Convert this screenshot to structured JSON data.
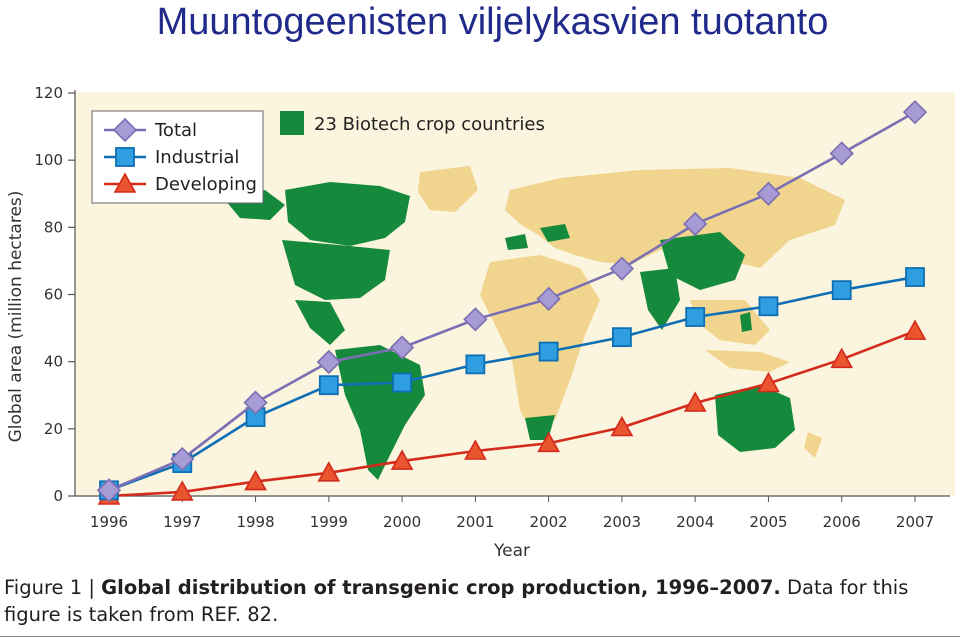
{
  "slide_title": "Muuntogeenisten viljelykasvien tuotanto",
  "chart_data": {
    "type": "line",
    "x": [
      "1996",
      "1997",
      "1998",
      "1999",
      "2000",
      "2001",
      "2002",
      "2003",
      "2004",
      "2005",
      "2006",
      "2007"
    ],
    "xlabel": "Year",
    "ylabel": "Global area (million hectares)",
    "ylim": [
      0,
      120
    ],
    "yticks": [
      "0",
      "20",
      "40",
      "60",
      "80",
      "100",
      "120"
    ],
    "grid": false,
    "legend_placement": "top-left",
    "series": [
      {
        "name": "Total",
        "marker": "diamond",
        "color": "#7b6fb3",
        "fill": "#a79bd6",
        "values": [
          1.7,
          11,
          27.8,
          39.9,
          44.2,
          52.6,
          58.7,
          67.7,
          81,
          90,
          102,
          114.3
        ]
      },
      {
        "name": "Industrial",
        "marker": "square",
        "color": "#0f6fb5",
        "fill": "#2f9ee0",
        "values": [
          1.7,
          9.8,
          23.5,
          33,
          33.8,
          39.2,
          43,
          47.3,
          53.3,
          56.5,
          61.3,
          65.2
        ]
      },
      {
        "name": "Developing",
        "marker": "triangle",
        "color": "#d42a1c",
        "fill": "#e8552f",
        "values": [
          0,
          1.2,
          4.3,
          6.9,
          10.4,
          13.4,
          15.7,
          20.4,
          27.7,
          33.5,
          40.7,
          49.1
        ]
      }
    ],
    "annotation": {
      "text": "23 Biotech crop countries",
      "color": "#168a3c"
    }
  },
  "caption": {
    "lead": "Figure 1 | ",
    "bold": "Global distribution of transgenic crop production, 1996–2007.",
    "rest": " Data for this figure is taken from REF. 82."
  },
  "colors": {
    "title": "#1f2a8a",
    "map_background": "#fbf4de",
    "land_nonbiotech": "#f1d58e",
    "land_biotech": "#168a3c"
  }
}
